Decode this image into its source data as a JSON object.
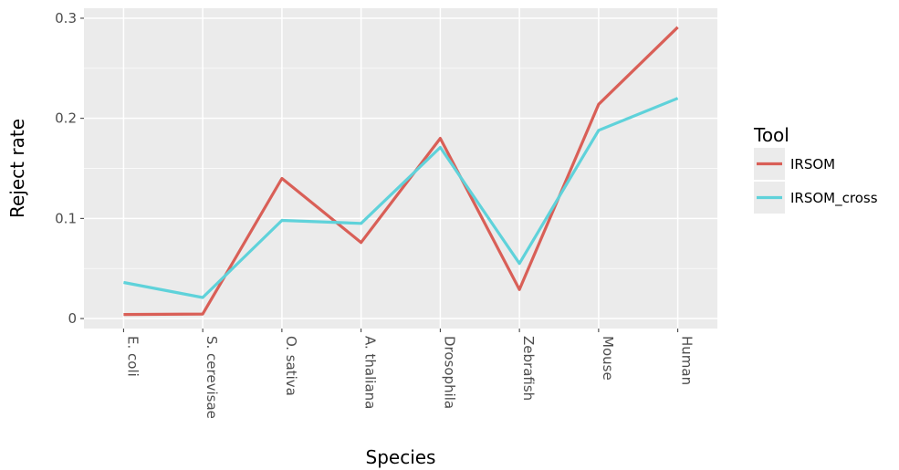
{
  "chart_data": {
    "type": "line",
    "xlabel": "Species",
    "ylabel": "Reject rate",
    "categories": [
      "E. coli",
      "S. cerevisae",
      "O. sativa",
      "A. thaliana",
      "Drosophila",
      "Zebrafish",
      "Mouse",
      "Human"
    ],
    "ylim": [
      -0.01,
      0.31
    ],
    "yticks": [
      0,
      0.1,
      0.2,
      0.3
    ],
    "ytick_labels": [
      "0",
      "0.1",
      "0.2",
      "0.3"
    ],
    "grid": true,
    "legend": {
      "title": "Tool",
      "position": "right"
    },
    "series": [
      {
        "name": "IRSOM",
        "color": "#d95f57",
        "values": [
          0.004,
          0.0045,
          0.14,
          0.076,
          0.18,
          0.029,
          0.214,
          0.291
        ]
      },
      {
        "name": "IRSOM_cross",
        "color": "#5fd2da",
        "values": [
          0.036,
          0.021,
          0.098,
          0.095,
          0.171,
          0.055,
          0.188,
          0.22
        ]
      }
    ]
  }
}
